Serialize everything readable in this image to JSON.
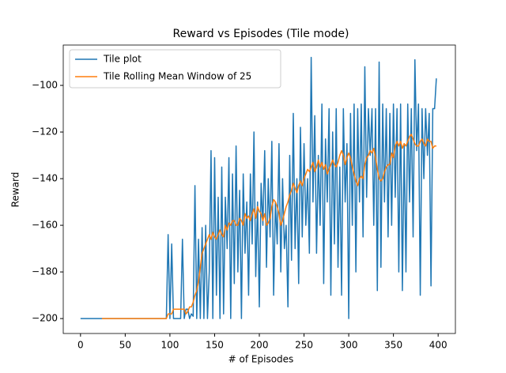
{
  "chart_data": {
    "type": "line",
    "title": "Reward vs Episodes (Tile mode)",
    "x_label": "# of Episodes",
    "y_label": "Reward",
    "x": [
      0,
      2,
      4,
      6,
      8,
      10,
      12,
      14,
      16,
      18,
      20,
      22,
      24,
      26,
      28,
      30,
      32,
      34,
      36,
      38,
      40,
      42,
      44,
      46,
      48,
      50,
      52,
      54,
      56,
      58,
      60,
      62,
      64,
      66,
      68,
      70,
      72,
      74,
      76,
      78,
      80,
      82,
      84,
      86,
      88,
      90,
      92,
      94,
      96,
      98,
      100,
      102,
      104,
      106,
      108,
      110,
      112,
      114,
      116,
      118,
      120,
      122,
      124,
      126,
      128,
      130,
      132,
      134,
      136,
      138,
      140,
      142,
      144,
      146,
      148,
      150,
      152,
      154,
      156,
      158,
      160,
      162,
      164,
      166,
      168,
      170,
      172,
      174,
      176,
      178,
      180,
      182,
      184,
      186,
      188,
      190,
      192,
      194,
      196,
      198,
      200,
      202,
      204,
      206,
      208,
      210,
      212,
      214,
      216,
      218,
      220,
      222,
      224,
      226,
      228,
      230,
      232,
      234,
      236,
      238,
      240,
      242,
      244,
      246,
      248,
      250,
      252,
      254,
      256,
      258,
      260,
      262,
      264,
      266,
      268,
      270,
      272,
      274,
      276,
      278,
      280,
      282,
      284,
      286,
      288,
      290,
      292,
      294,
      296,
      298,
      300,
      302,
      304,
      306,
      308,
      310,
      312,
      314,
      316,
      318,
      320,
      322,
      324,
      326,
      328,
      330,
      332,
      334,
      336,
      338,
      340,
      342,
      344,
      346,
      348,
      350,
      352,
      354,
      356,
      358,
      360,
      362,
      364,
      366,
      368,
      370,
      372,
      374,
      376,
      378,
      380,
      382,
      384,
      386,
      388,
      390,
      392,
      394,
      396,
      398
    ],
    "series": [
      {
        "name": "Tile plot",
        "color": "#1f77b4",
        "values": [
          -200,
          -200,
          -200,
          -200,
          -200,
          -200,
          -200,
          -200,
          -200,
          -200,
          -200,
          -200,
          -200,
          -200,
          -200,
          -200,
          -200,
          -200,
          -200,
          -200,
          -200,
          -200,
          -200,
          -200,
          -200,
          -200,
          -200,
          -200,
          -200,
          -200,
          -200,
          -200,
          -200,
          -200,
          -200,
          -200,
          -200,
          -200,
          -200,
          -200,
          -200,
          -200,
          -200,
          -200,
          -200,
          -200,
          -200,
          -200,
          -200,
          -164,
          -200,
          -168,
          -200,
          -200,
          -200,
          -200,
          -200,
          -166,
          -200,
          -196,
          -196,
          -200,
          -198,
          -199,
          -143,
          -200,
          -166,
          -200,
          -161,
          -200,
          -160,
          -200,
          -180,
          -128,
          -200,
          -131,
          -190,
          -148,
          -200,
          -135,
          -198,
          -148,
          -170,
          -131,
          -200,
          -138,
          -185,
          -126,
          -180,
          -145,
          -200,
          -138,
          -172,
          -150,
          -190,
          -138,
          -168,
          -120,
          -182,
          -150,
          -195,
          -142,
          -160,
          -128,
          -178,
          -140,
          -165,
          -124,
          -190,
          -150,
          -168,
          -125,
          -180,
          -140,
          -170,
          -160,
          -195,
          -130,
          -175,
          -112,
          -170,
          -140,
          -185,
          -118,
          -165,
          -125,
          -160,
          -140,
          -172,
          -88,
          -150,
          -113,
          -172,
          -130,
          -160,
          -108,
          -185,
          -123,
          -150,
          -110,
          -190,
          -120,
          -168,
          -110,
          -178,
          -135,
          -190,
          -110,
          -150,
          -125,
          -200,
          -112,
          -160,
          -108,
          -180,
          -110,
          -150,
          -108,
          -165,
          -92,
          -148,
          -110,
          -130,
          -110,
          -160,
          -110,
          -188,
          -90,
          -178,
          -108,
          -150,
          -110,
          -165,
          -112,
          -160,
          -108,
          -148,
          -110,
          -180,
          -108,
          -188,
          -125,
          -180,
          -108,
          -150,
          -110,
          -165,
          -89,
          -128,
          -108,
          -190,
          -110,
          -140,
          -110,
          -130,
          -112,
          -186,
          -110,
          -110,
          -97
        ]
      },
      {
        "name": "Tile Rolling Mean Window of 25",
        "color": "#ff7f0e",
        "values": [
          null,
          null,
          null,
          null,
          null,
          null,
          null,
          null,
          null,
          null,
          null,
          null,
          -200,
          -200,
          -200,
          -200,
          -200,
          -200,
          -200,
          -200,
          -200,
          -200,
          -200,
          -200,
          -200,
          -200,
          -200,
          -200,
          -200,
          -200,
          -200,
          -200,
          -200,
          -200,
          -200,
          -200,
          -200,
          -200,
          -200,
          -200,
          -200,
          -200,
          -200,
          -200,
          -200,
          -200,
          -200,
          -200,
          -200,
          -198,
          -198,
          -198,
          -196,
          -196,
          -196,
          -196,
          -196,
          -196,
          -196,
          -198,
          -197,
          -195,
          -195,
          -193,
          -190,
          -188,
          -184,
          -178,
          -172,
          -170,
          -168,
          -166,
          -164,
          -166,
          -163,
          -165,
          -166,
          -164,
          -162,
          -164,
          -165,
          -160,
          -162,
          -159,
          -160,
          -158,
          -158,
          -160,
          -160,
          -157,
          -158,
          -160,
          -155,
          -157,
          -156,
          -158,
          -155,
          -153,
          -157,
          -152,
          -154,
          -155,
          -158,
          -155,
          -160,
          -159,
          -157,
          -152,
          -149,
          -150,
          -152,
          -155,
          -160,
          -158,
          -155,
          -152,
          -150,
          -147,
          -145,
          -142,
          -144,
          -146,
          -143,
          -141,
          -143,
          -140,
          -138,
          -136,
          -137,
          -135,
          -133,
          -137,
          -135,
          -132,
          -135,
          -133,
          -136,
          -134,
          -138,
          -136,
          -134,
          -132,
          -134,
          -135,
          -133,
          -130,
          -128,
          -130,
          -134,
          -131,
          -129,
          -131,
          -135,
          -138,
          -141,
          -143,
          -140,
          -139,
          -140,
          -134,
          -131,
          -130,
          -128,
          -129,
          -127,
          -131,
          -136,
          -140,
          -141,
          -140,
          -137,
          -135,
          -134,
          -134,
          -129,
          -131,
          -126,
          -124,
          -126,
          -124,
          -127,
          -125,
          -126,
          -124,
          -122,
          -121,
          -123,
          -125,
          -126,
          -126,
          -124,
          -123,
          -125,
          -126,
          -123,
          -124,
          -124,
          -127,
          -126,
          -126
        ]
      }
    ],
    "xlim": [
      -19.3,
      419.3
    ],
    "xticks": [
      0,
      50,
      100,
      150,
      200,
      250,
      300,
      350,
      400
    ],
    "ylim": [
      -206.4,
      -82.7
    ],
    "yticks": [
      {
        "value": -200,
        "label": "−200"
      },
      {
        "value": -180,
        "label": "−180"
      },
      {
        "value": -160,
        "label": "−160"
      },
      {
        "value": -140,
        "label": "−140"
      },
      {
        "value": -120,
        "label": "−120"
      },
      {
        "value": -100,
        "label": "−100"
      }
    ],
    "legend": "upper left"
  }
}
